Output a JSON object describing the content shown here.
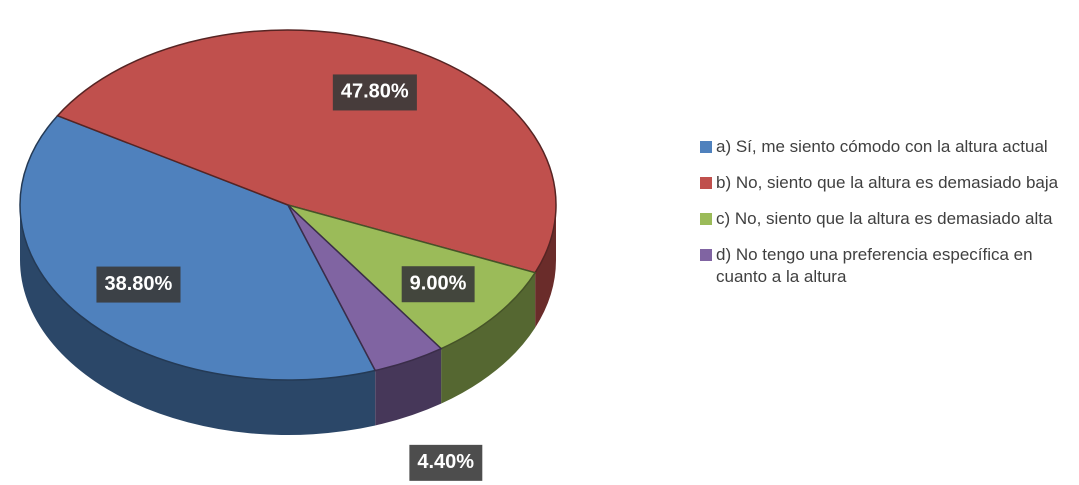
{
  "chart_data": {
    "type": "pie",
    "categories": [
      "a) Sí, me siento cómodo con la altura actual",
      "b) No, siento que la altura es demasiado baja",
      "c) No, siento que la altura es demasiado alta",
      "d) No tengo una preferencia específica en cuanto a la altura"
    ],
    "values": [
      38.8,
      47.8,
      9.0,
      4.4
    ],
    "value_labels": [
      "38.80%",
      "47.80%",
      "9.00%",
      "4.40%"
    ],
    "colors": [
      "#4f81bd",
      "#c0504d",
      "#9bbb59",
      "#8064a2"
    ],
    "legend": "right"
  }
}
